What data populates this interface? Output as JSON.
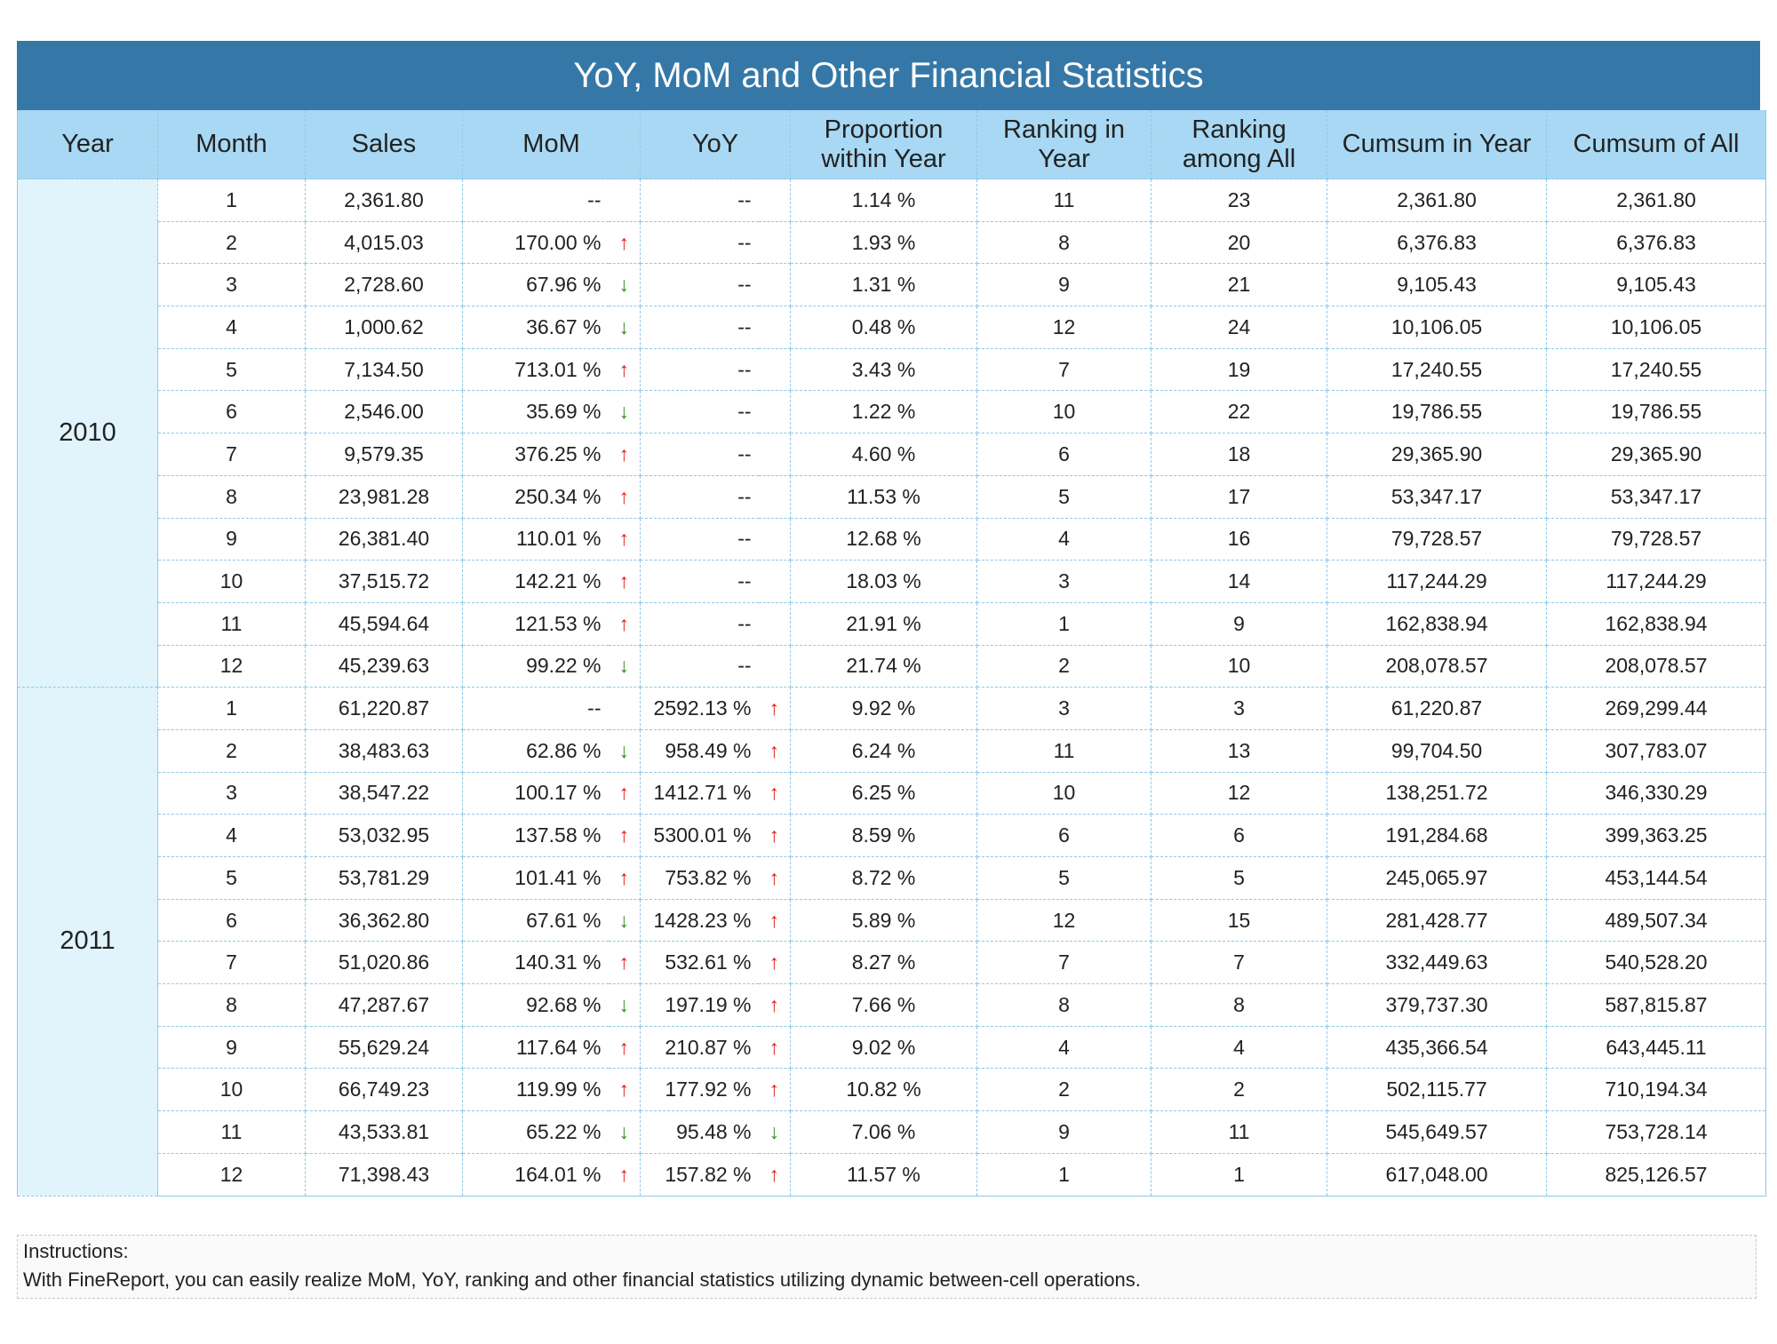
{
  "title": "YoY, MoM and Other Financial Statistics",
  "headers": {
    "year": "Year",
    "month": "Month",
    "sales": "Sales",
    "mom": "MoM",
    "yoy": "YoY",
    "proportion": [
      "Proportion",
      "within Year"
    ],
    "rank_year": [
      "Ranking in",
      "Year"
    ],
    "rank_all": [
      "Ranking",
      "among All"
    ],
    "cum_year": "Cumsum in Year",
    "cum_all": "Cumsum of All"
  },
  "colors": {
    "title_bg": "#3578a8",
    "header_bg": "#a8d8f3",
    "year_bg": "#e1f4fc",
    "up_arrow": "#e0201b",
    "down_arrow": "#3b8c24",
    "border": "#8ec9e8"
  },
  "arrow_glyphs": {
    "up": "↑",
    "down": "↓"
  },
  "years": [
    {
      "year": "2010",
      "rows": [
        {
          "month": "1",
          "sales": "2,361.80",
          "mom": "--",
          "mom_dir": "",
          "yoy": "--",
          "yoy_dir": "",
          "prop": "1.14 %",
          "rank_year": "11",
          "rank_all": "23",
          "cum_year": "2,361.80",
          "cum_all": "2,361.80"
        },
        {
          "month": "2",
          "sales": "4,015.03",
          "mom": "170.00 %",
          "mom_dir": "up",
          "yoy": "--",
          "yoy_dir": "",
          "prop": "1.93 %",
          "rank_year": "8",
          "rank_all": "20",
          "cum_year": "6,376.83",
          "cum_all": "6,376.83"
        },
        {
          "month": "3",
          "sales": "2,728.60",
          "mom": "67.96 %",
          "mom_dir": "down",
          "yoy": "--",
          "yoy_dir": "",
          "prop": "1.31 %",
          "rank_year": "9",
          "rank_all": "21",
          "cum_year": "9,105.43",
          "cum_all": "9,105.43"
        },
        {
          "month": "4",
          "sales": "1,000.62",
          "mom": "36.67 %",
          "mom_dir": "down",
          "yoy": "--",
          "yoy_dir": "",
          "prop": "0.48 %",
          "rank_year": "12",
          "rank_all": "24",
          "cum_year": "10,106.05",
          "cum_all": "10,106.05"
        },
        {
          "month": "5",
          "sales": "7,134.50",
          "mom": "713.01 %",
          "mom_dir": "up",
          "yoy": "--",
          "yoy_dir": "",
          "prop": "3.43 %",
          "rank_year": "7",
          "rank_all": "19",
          "cum_year": "17,240.55",
          "cum_all": "17,240.55"
        },
        {
          "month": "6",
          "sales": "2,546.00",
          "mom": "35.69 %",
          "mom_dir": "down",
          "yoy": "--",
          "yoy_dir": "",
          "prop": "1.22 %",
          "rank_year": "10",
          "rank_all": "22",
          "cum_year": "19,786.55",
          "cum_all": "19,786.55"
        },
        {
          "month": "7",
          "sales": "9,579.35",
          "mom": "376.25 %",
          "mom_dir": "up",
          "yoy": "--",
          "yoy_dir": "",
          "prop": "4.60 %",
          "rank_year": "6",
          "rank_all": "18",
          "cum_year": "29,365.90",
          "cum_all": "29,365.90"
        },
        {
          "month": "8",
          "sales": "23,981.28",
          "mom": "250.34 %",
          "mom_dir": "up",
          "yoy": "--",
          "yoy_dir": "",
          "prop": "11.53 %",
          "rank_year": "5",
          "rank_all": "17",
          "cum_year": "53,347.17",
          "cum_all": "53,347.17"
        },
        {
          "month": "9",
          "sales": "26,381.40",
          "mom": "110.01 %",
          "mom_dir": "up",
          "yoy": "--",
          "yoy_dir": "",
          "prop": "12.68 %",
          "rank_year": "4",
          "rank_all": "16",
          "cum_year": "79,728.57",
          "cum_all": "79,728.57"
        },
        {
          "month": "10",
          "sales": "37,515.72",
          "mom": "142.21 %",
          "mom_dir": "up",
          "yoy": "--",
          "yoy_dir": "",
          "prop": "18.03 %",
          "rank_year": "3",
          "rank_all": "14",
          "cum_year": "117,244.29",
          "cum_all": "117,244.29"
        },
        {
          "month": "11",
          "sales": "45,594.64",
          "mom": "121.53 %",
          "mom_dir": "up",
          "yoy": "--",
          "yoy_dir": "",
          "prop": "21.91 %",
          "rank_year": "1",
          "rank_all": "9",
          "cum_year": "162,838.94",
          "cum_all": "162,838.94"
        },
        {
          "month": "12",
          "sales": "45,239.63",
          "mom": "99.22 %",
          "mom_dir": "down",
          "yoy": "--",
          "yoy_dir": "",
          "prop": "21.74 %",
          "rank_year": "2",
          "rank_all": "10",
          "cum_year": "208,078.57",
          "cum_all": "208,078.57"
        }
      ]
    },
    {
      "year": "2011",
      "rows": [
        {
          "month": "1",
          "sales": "61,220.87",
          "mom": "--",
          "mom_dir": "",
          "yoy": "2592.13 %",
          "yoy_dir": "up",
          "prop": "9.92 %",
          "rank_year": "3",
          "rank_all": "3",
          "cum_year": "61,220.87",
          "cum_all": "269,299.44"
        },
        {
          "month": "2",
          "sales": "38,483.63",
          "mom": "62.86 %",
          "mom_dir": "down",
          "yoy": "958.49 %",
          "yoy_dir": "up",
          "prop": "6.24 %",
          "rank_year": "11",
          "rank_all": "13",
          "cum_year": "99,704.50",
          "cum_all": "307,783.07"
        },
        {
          "month": "3",
          "sales": "38,547.22",
          "mom": "100.17 %",
          "mom_dir": "up",
          "yoy": "1412.71 %",
          "yoy_dir": "up",
          "prop": "6.25 %",
          "rank_year": "10",
          "rank_all": "12",
          "cum_year": "138,251.72",
          "cum_all": "346,330.29"
        },
        {
          "month": "4",
          "sales": "53,032.95",
          "mom": "137.58 %",
          "mom_dir": "up",
          "yoy": "5300.01 %",
          "yoy_dir": "up",
          "prop": "8.59 %",
          "rank_year": "6",
          "rank_all": "6",
          "cum_year": "191,284.68",
          "cum_all": "399,363.25"
        },
        {
          "month": "5",
          "sales": "53,781.29",
          "mom": "101.41 %",
          "mom_dir": "up",
          "yoy": "753.82 %",
          "yoy_dir": "up",
          "prop": "8.72 %",
          "rank_year": "5",
          "rank_all": "5",
          "cum_year": "245,065.97",
          "cum_all": "453,144.54"
        },
        {
          "month": "6",
          "sales": "36,362.80",
          "mom": "67.61 %",
          "mom_dir": "down",
          "yoy": "1428.23 %",
          "yoy_dir": "up",
          "prop": "5.89 %",
          "rank_year": "12",
          "rank_all": "15",
          "cum_year": "281,428.77",
          "cum_all": "489,507.34"
        },
        {
          "month": "7",
          "sales": "51,020.86",
          "mom": "140.31 %",
          "mom_dir": "up",
          "yoy": "532.61 %",
          "yoy_dir": "up",
          "prop": "8.27 %",
          "rank_year": "7",
          "rank_all": "7",
          "cum_year": "332,449.63",
          "cum_all": "540,528.20"
        },
        {
          "month": "8",
          "sales": "47,287.67",
          "mom": "92.68 %",
          "mom_dir": "down",
          "yoy": "197.19 %",
          "yoy_dir": "up",
          "prop": "7.66 %",
          "rank_year": "8",
          "rank_all": "8",
          "cum_year": "379,737.30",
          "cum_all": "587,815.87"
        },
        {
          "month": "9",
          "sales": "55,629.24",
          "mom": "117.64 %",
          "mom_dir": "up",
          "yoy": "210.87 %",
          "yoy_dir": "up",
          "prop": "9.02 %",
          "rank_year": "4",
          "rank_all": "4",
          "cum_year": "435,366.54",
          "cum_all": "643,445.11"
        },
        {
          "month": "10",
          "sales": "66,749.23",
          "mom": "119.99 %",
          "mom_dir": "up",
          "yoy": "177.92 %",
          "yoy_dir": "up",
          "prop": "10.82 %",
          "rank_year": "2",
          "rank_all": "2",
          "cum_year": "502,115.77",
          "cum_all": "710,194.34"
        },
        {
          "month": "11",
          "sales": "43,533.81",
          "mom": "65.22 %",
          "mom_dir": "down",
          "yoy": "95.48 %",
          "yoy_dir": "down",
          "prop": "7.06 %",
          "rank_year": "9",
          "rank_all": "11",
          "cum_year": "545,649.57",
          "cum_all": "753,728.14"
        },
        {
          "month": "12",
          "sales": "71,398.43",
          "mom": "164.01 %",
          "mom_dir": "up",
          "yoy": "157.82 %",
          "yoy_dir": "up",
          "prop": "11.57 %",
          "rank_year": "1",
          "rank_all": "1",
          "cum_year": "617,048.00",
          "cum_all": "825,126.57"
        }
      ]
    }
  ],
  "instructions": {
    "heading": "Instructions:",
    "text": "With FineReport, you can easily realize MoM, YoY, ranking and other financial statistics utilizing dynamic between-cell operations."
  }
}
